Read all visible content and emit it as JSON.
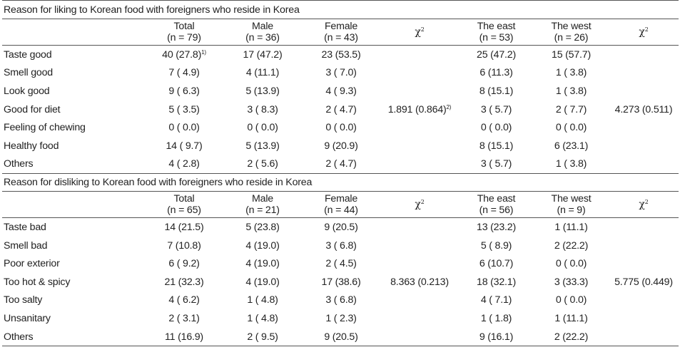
{
  "liking": {
    "title": "Reason for liking to Korean food with foreigners who reside in Korea",
    "headers": {
      "total": [
        "Total",
        "(n = 79)"
      ],
      "male": [
        "Male",
        "(n = 36)"
      ],
      "female": [
        "Female",
        "(n = 43)"
      ],
      "chi1": "χ",
      "east": [
        "The east",
        "(n = 53)"
      ],
      "west": [
        "The west",
        "(n = 26)"
      ],
      "chi2": "χ",
      "chi_sup": "2"
    },
    "rows": [
      {
        "label": "Taste good",
        "total": "40 (27.8)",
        "total_note": "1)",
        "male": "17 (47.2)",
        "female": "23 (53.5)",
        "east": "25 (47.2)",
        "west": "15 (57.7)"
      },
      {
        "label": "Smell good",
        "total": "7 ( 4.9)",
        "male": "4 (11.1)",
        "female": "3 ( 7.0)",
        "east": "6 (11.3)",
        "west": "1 ( 3.8)"
      },
      {
        "label": "Look good",
        "total": "9 ( 6.3)",
        "male": "5 (13.9)",
        "female": "4 ( 9.3)",
        "east": "8 (15.1)",
        "west": "1 ( 3.8)"
      },
      {
        "label": "Good for diet",
        "total": "5 ( 3.5)",
        "male": "3 ( 8.3)",
        "female": "2 ( 4.7)",
        "chi1": "1.891 (0.864)",
        "chi1_note": "2)",
        "east": "3 ( 5.7)",
        "west": "2 ( 7.7)",
        "chi2": "4.273 (0.511)"
      },
      {
        "label": "Feeling of chewing",
        "total": "0 ( 0.0)",
        "male": "0 ( 0.0)",
        "female": "0 ( 0.0)",
        "east": "0 ( 0.0)",
        "west": "0 ( 0.0)"
      },
      {
        "label": "Healthy food",
        "total": "14 ( 9.7)",
        "male": "5 (13.9)",
        "female": "9 (20.9)",
        "east": "8 (15.1)",
        "west": "6 (23.1)"
      },
      {
        "label": "Others",
        "total": "4 ( 2.8)",
        "male": "2 ( 5.6)",
        "female": "2 ( 4.7)",
        "east": "3 ( 5.7)",
        "west": "1 ( 3.8)"
      }
    ]
  },
  "disliking": {
    "title": "Reason for disliking to Korean food with foreigners who reside in Korea",
    "headers": {
      "total": [
        "Total",
        "(n = 65)"
      ],
      "male": [
        "Male",
        "(n = 21)"
      ],
      "female": [
        "Female",
        "(n = 44)"
      ],
      "chi1": "χ",
      "east": [
        "The east",
        "(n = 56)"
      ],
      "west": [
        "The west",
        "(n = 9)"
      ],
      "chi2": "χ",
      "chi_sup": "2"
    },
    "rows": [
      {
        "label": "Taste bad",
        "total": "14 (21.5)",
        "male": "5 (23.8)",
        "female": "9 (20.5)",
        "east": "13 (23.2)",
        "west": "1 (11.1)"
      },
      {
        "label": "Smell bad",
        "total": "7 (10.8)",
        "male": "4 (19.0)",
        "female": "3 ( 6.8)",
        "east": "5 ( 8.9)",
        "west": "2 (22.2)"
      },
      {
        "label": "Poor exterior",
        "total": "6 ( 9.2)",
        "male": "4 (19.0)",
        "female": "2 ( 4.5)",
        "east": "6 (10.7)",
        "west": "0 ( 0.0)"
      },
      {
        "label": "Too hot & spicy",
        "total": "21 (32.3)",
        "male": "4 (19.0)",
        "female": "17 (38.6)",
        "chi1": "8.363 (0.213)",
        "east": "18 (32.1)",
        "west": "3 (33.3)",
        "chi2": "5.775 (0.449)"
      },
      {
        "label": "Too salty",
        "total": "4 ( 6.2)",
        "male": "1 ( 4.8)",
        "female": "3 ( 6.8)",
        "east": "4 ( 7.1)",
        "west": "0 ( 0.0)"
      },
      {
        "label": "Unsanitary",
        "total": "2 ( 3.1)",
        "male": "1 ( 4.8)",
        "female": "1 ( 2.3)",
        "east": "1 ( 1.8)",
        "west": "1 (11.1)"
      },
      {
        "label": "Others",
        "total": "11 (16.9)",
        "male": "2 ( 9.5)",
        "female": "9 (20.5)",
        "east": "9 (16.1)",
        "west": "2 (22.2)"
      }
    ]
  }
}
